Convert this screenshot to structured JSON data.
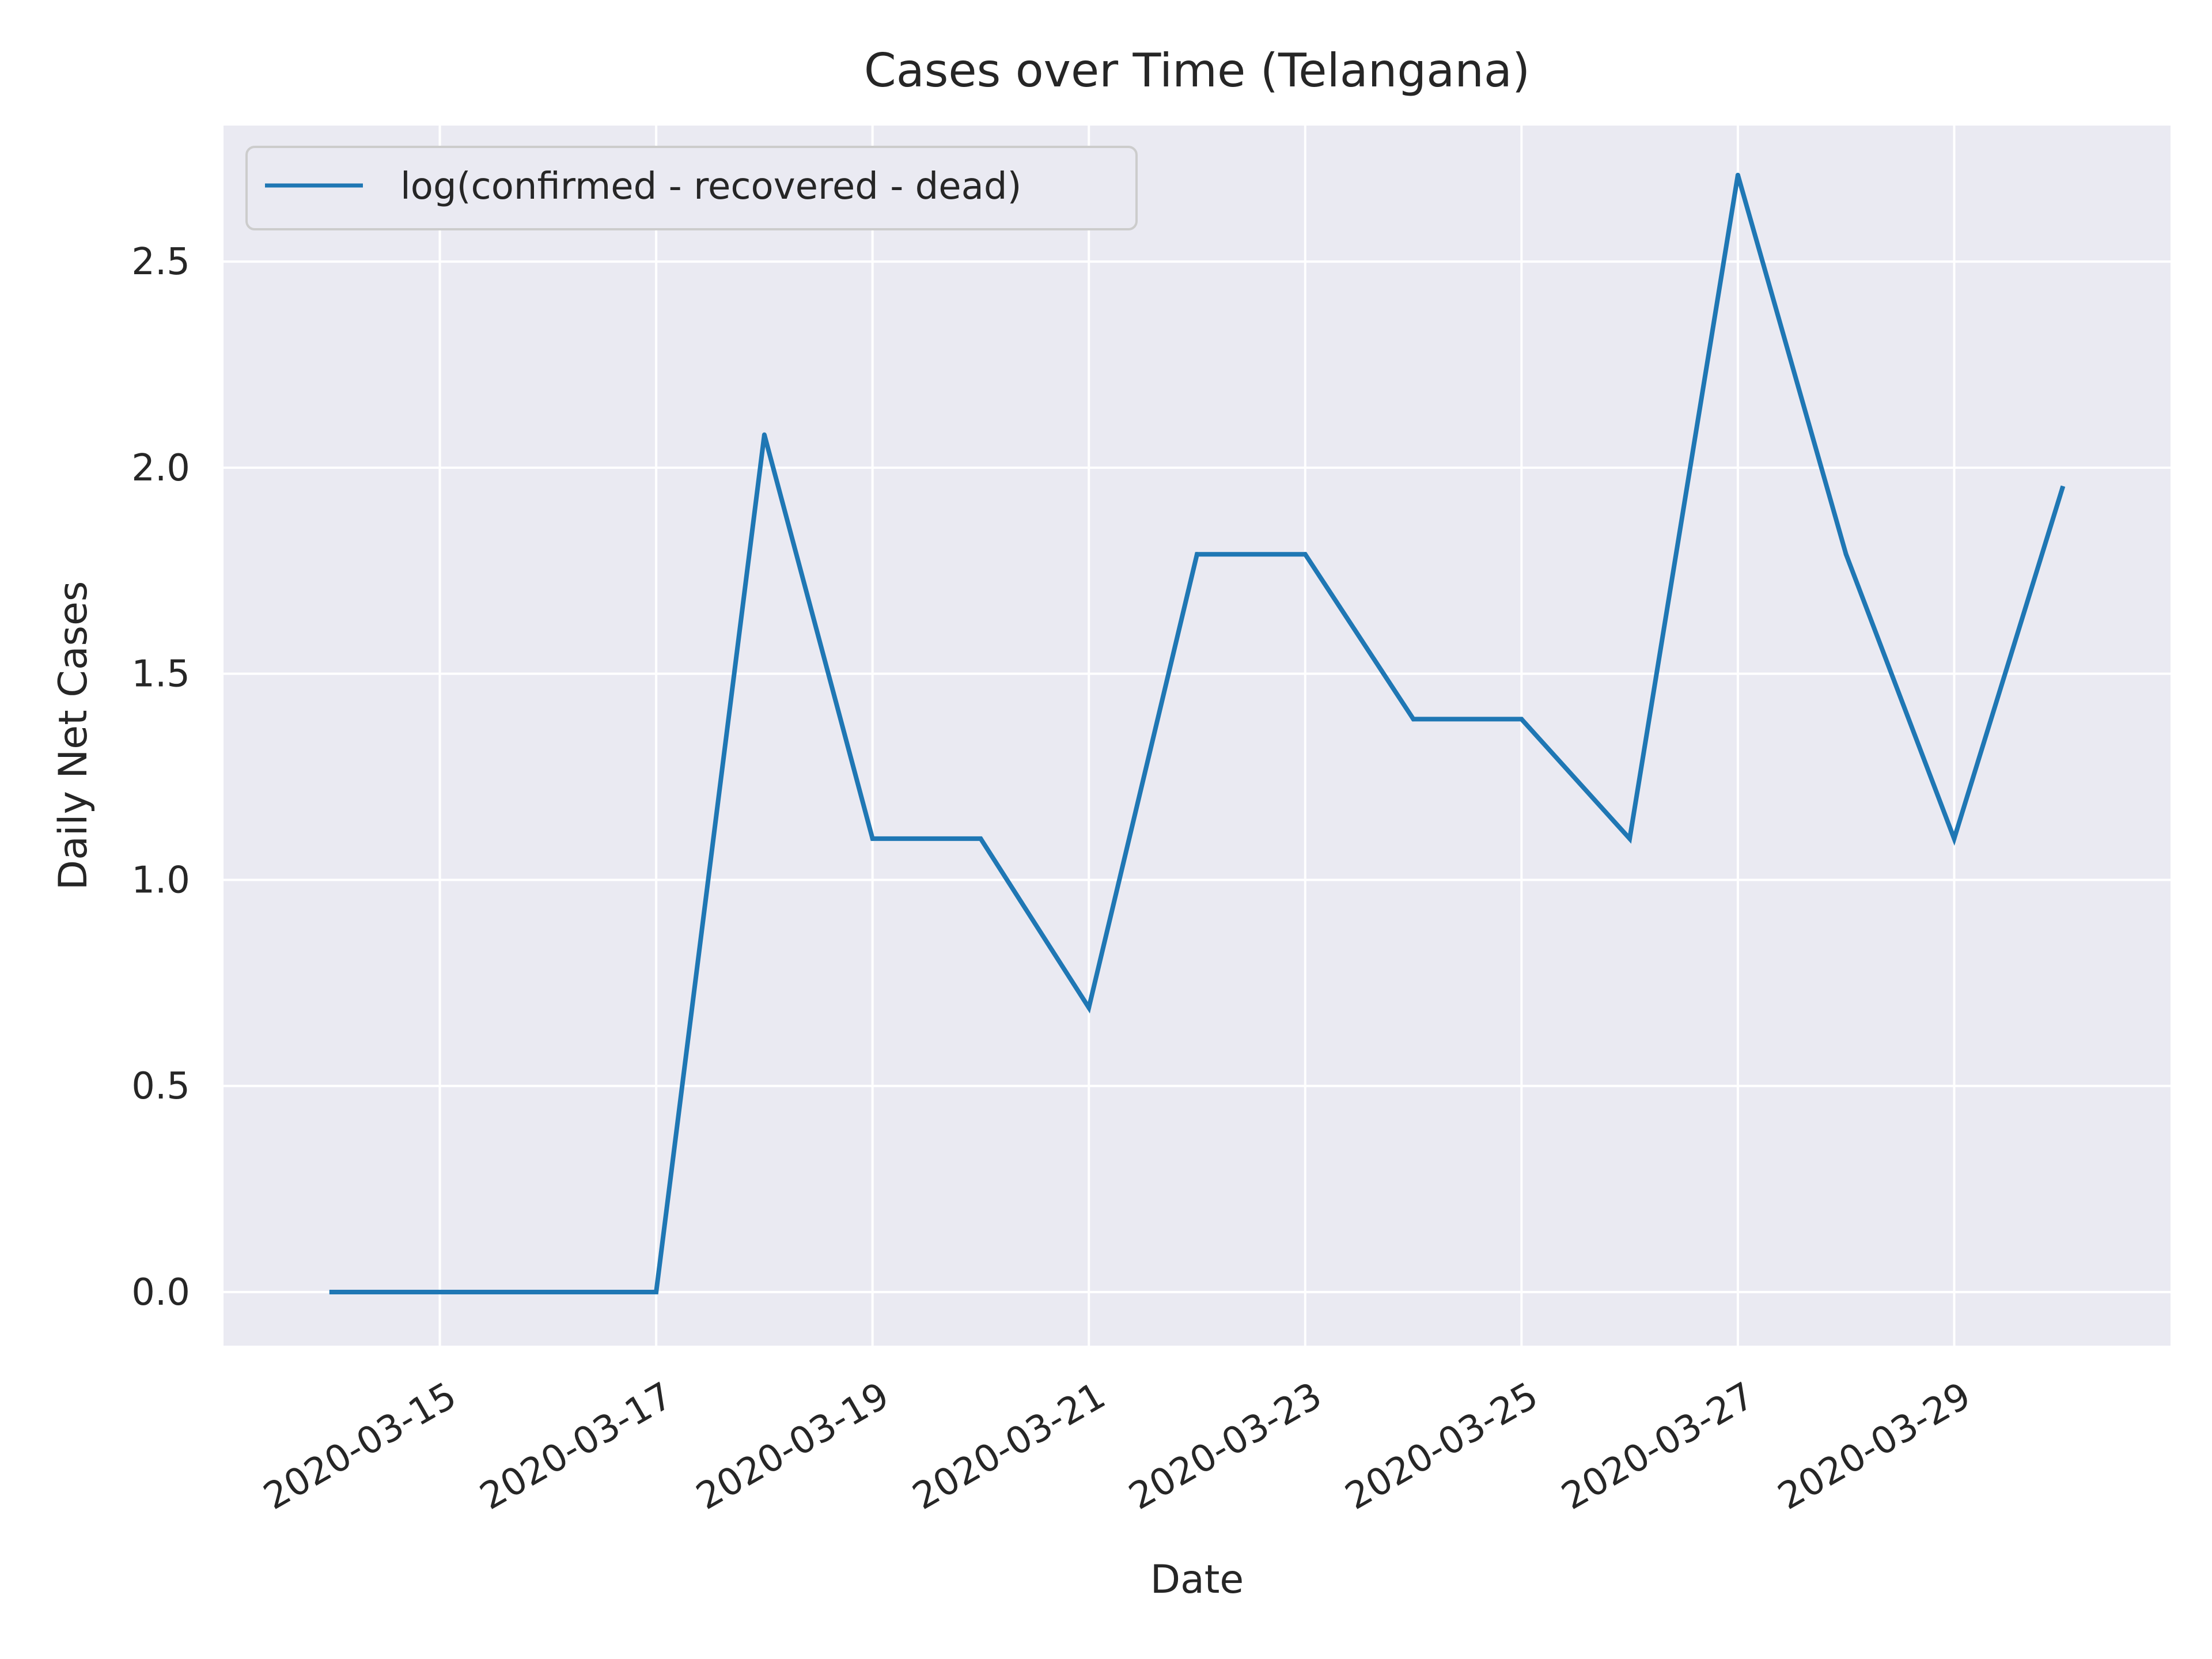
{
  "chart_data": {
    "type": "line",
    "title": "Cases over Time (Telangana)",
    "xlabel": "Date",
    "ylabel": "Daily Net Cases",
    "x_tick_labels": [
      "2020-03-15",
      "2020-03-17",
      "2020-03-19",
      "2020-03-21",
      "2020-03-23",
      "2020-03-25",
      "2020-03-27",
      "2020-03-29"
    ],
    "y_tick_labels": [
      "0.0",
      "0.5",
      "1.0",
      "1.5",
      "2.0",
      "2.5"
    ],
    "xlim": [
      "2020-03-13",
      "2020-03-31"
    ],
    "ylim": [
      -0.13,
      2.83
    ],
    "grid": true,
    "legend_position": "top-left",
    "background_color": "#eaeaf2",
    "grid_color": "#ffffff",
    "series": [
      {
        "name": "log(confirmed - recovered - dead)",
        "color": "#1f77b4",
        "x": [
          "2020-03-14",
          "2020-03-15",
          "2020-03-16",
          "2020-03-17",
          "2020-03-18",
          "2020-03-19",
          "2020-03-20",
          "2020-03-21",
          "2020-03-22",
          "2020-03-23",
          "2020-03-24",
          "2020-03-25",
          "2020-03-26",
          "2020-03-27",
          "2020-03-28",
          "2020-03-29",
          "2020-03-30"
        ],
        "y": [
          0.0,
          0.0,
          0.0,
          0.0,
          2.08,
          1.1,
          1.1,
          0.69,
          1.79,
          1.79,
          1.39,
          1.39,
          1.1,
          2.71,
          1.79,
          1.1,
          1.95
        ]
      }
    ]
  }
}
